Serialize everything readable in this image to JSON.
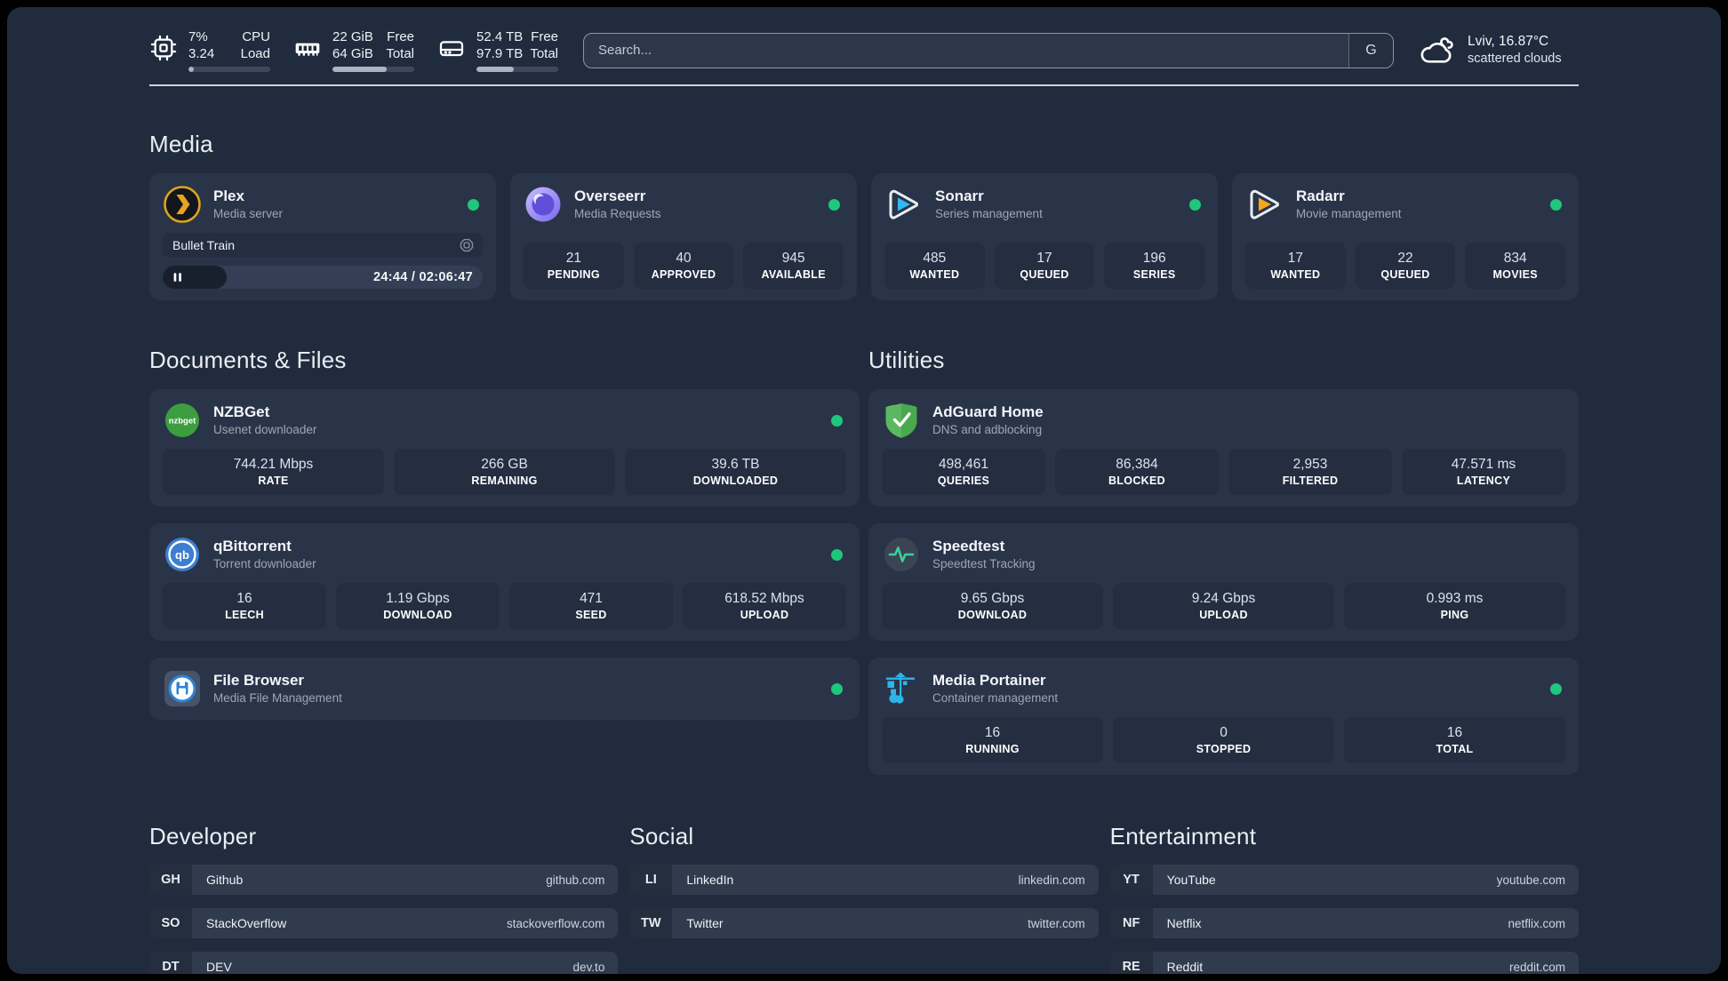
{
  "topbar": {
    "system_stats": [
      {
        "icon": "cpu-icon",
        "values": [
          "7%",
          "3.24"
        ],
        "labels": [
          "CPU",
          "Load"
        ],
        "progress": 7
      },
      {
        "icon": "ram-icon",
        "values": [
          "22 GiB",
          "64 GiB"
        ],
        "labels": [
          "Free",
          "Total"
        ],
        "progress": 66
      },
      {
        "icon": "disk-icon",
        "values": [
          "52.4 TB",
          "97.9 TB"
        ],
        "labels": [
          "Free",
          "Total"
        ],
        "progress": 46
      }
    ],
    "search": {
      "placeholder": "Search...",
      "button_label": "G"
    },
    "weather": {
      "icon": "cloud-icon",
      "location": "Lviv, 16.87°C",
      "condition": "scattered clouds"
    }
  },
  "sections": {
    "media": {
      "title": "Media",
      "cards": [
        {
          "id": "plex",
          "name": "Plex",
          "subtitle": "Media server",
          "icon": "plex-icon",
          "online": true,
          "now_playing": {
            "title": "Bullet Train",
            "time_display": "24:44 / 02:06:47",
            "progress": 20
          }
        },
        {
          "id": "overseerr",
          "name": "Overseerr",
          "subtitle": "Media Requests",
          "icon": "overseerr-icon",
          "online": true,
          "stats": [
            {
              "value": "21",
              "label": "PENDING"
            },
            {
              "value": "40",
              "label": "APPROVED"
            },
            {
              "value": "945",
              "label": "AVAILABLE"
            }
          ]
        },
        {
          "id": "sonarr",
          "name": "Sonarr",
          "subtitle": "Series management",
          "icon": "sonarr-icon",
          "online": true,
          "stats": [
            {
              "value": "485",
              "label": "WANTED"
            },
            {
              "value": "17",
              "label": "QUEUED"
            },
            {
              "value": "196",
              "label": "SERIES"
            }
          ]
        },
        {
          "id": "radarr",
          "name": "Radarr",
          "subtitle": "Movie management",
          "icon": "radarr-icon",
          "online": true,
          "stats": [
            {
              "value": "17",
              "label": "WANTED"
            },
            {
              "value": "22",
              "label": "QUEUED"
            },
            {
              "value": "834",
              "label": "MOVIES"
            }
          ]
        }
      ]
    },
    "documents": {
      "title": "Documents & Files",
      "cards": [
        {
          "id": "nzbget",
          "name": "NZBGet",
          "subtitle": "Usenet downloader",
          "icon": "nzbget-icon",
          "online": true,
          "stats": [
            {
              "value": "744.21 Mbps",
              "label": "RATE"
            },
            {
              "value": "266 GB",
              "label": "REMAINING"
            },
            {
              "value": "39.6 TB",
              "label": "DOWNLOADED"
            }
          ]
        },
        {
          "id": "qbittorrent",
          "name": "qBittorrent",
          "subtitle": "Torrent downloader",
          "icon": "qbittorrent-icon",
          "online": true,
          "stats": [
            {
              "value": "16",
              "label": "LEECH"
            },
            {
              "value": "1.19 Gbps",
              "label": "DOWNLOAD"
            },
            {
              "value": "471",
              "label": "SEED"
            },
            {
              "value": "618.52 Mbps",
              "label": "UPLOAD"
            }
          ]
        },
        {
          "id": "filebrowser",
          "name": "File Browser",
          "subtitle": "Media File Management",
          "icon": "filebrowser-icon",
          "online": true
        }
      ]
    },
    "utilities": {
      "title": "Utilities",
      "cards": [
        {
          "id": "adguard",
          "name": "AdGuard Home",
          "subtitle": "DNS and adblocking",
          "icon": "adguard-icon",
          "online": false,
          "stats": [
            {
              "value": "498,461",
              "label": "QUERIES"
            },
            {
              "value": "86,384",
              "label": "BLOCKED"
            },
            {
              "value": "2,953",
              "label": "FILTERED"
            },
            {
              "value": "47.571 ms",
              "label": "LATENCY"
            }
          ]
        },
        {
          "id": "speedtest",
          "name": "Speedtest",
          "subtitle": "Speedtest Tracking",
          "icon": "speedtest-icon",
          "online": false,
          "stats": [
            {
              "value": "9.65 Gbps",
              "label": "DOWNLOAD"
            },
            {
              "value": "9.24 Gbps",
              "label": "UPLOAD"
            },
            {
              "value": "0.993 ms",
              "label": "PING"
            }
          ]
        },
        {
          "id": "portainer",
          "name": "Media Portainer",
          "subtitle": "Container management",
          "icon": "portainer-icon",
          "online": true,
          "stats": [
            {
              "value": "16",
              "label": "RUNNING"
            },
            {
              "value": "0",
              "label": "STOPPED"
            },
            {
              "value": "16",
              "label": "TOTAL"
            }
          ]
        }
      ]
    },
    "links": [
      {
        "title": "Developer",
        "items": [
          {
            "abbr": "GH",
            "name": "Github",
            "url": "github.com"
          },
          {
            "abbr": "SO",
            "name": "StackOverflow",
            "url": "stackoverflow.com"
          },
          {
            "abbr": "DT",
            "name": "DEV",
            "url": "dev.to"
          }
        ]
      },
      {
        "title": "Social",
        "items": [
          {
            "abbr": "LI",
            "name": "LinkedIn",
            "url": "linkedin.com"
          },
          {
            "abbr": "TW",
            "name": "Twitter",
            "url": "twitter.com"
          }
        ]
      },
      {
        "title": "Entertainment",
        "items": [
          {
            "abbr": "YT",
            "name": "YouTube",
            "url": "youtube.com"
          },
          {
            "abbr": "NF",
            "name": "Netflix",
            "url": "netflix.com"
          },
          {
            "abbr": "RE",
            "name": "Reddit",
            "url": "reddit.com"
          }
        ]
      }
    ]
  },
  "colors": {
    "page_bg": "#202b3d",
    "card_bg": "#2a3448",
    "statbox_bg": "#242e40",
    "status_online": "#1fc77c",
    "divider": "#ccd3dc"
  }
}
